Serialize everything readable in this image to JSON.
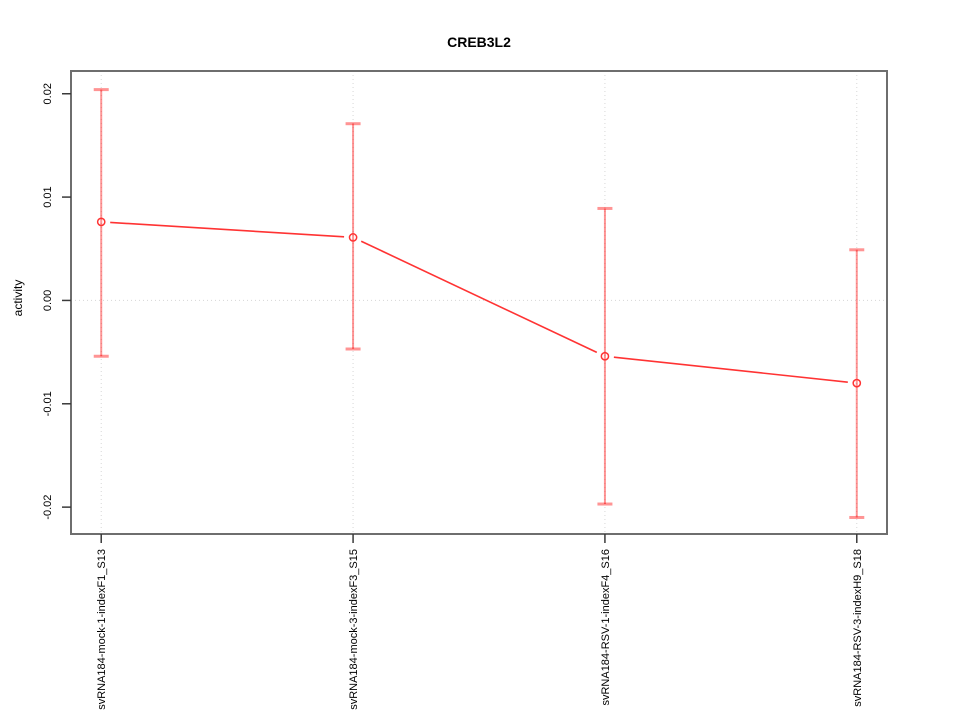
{
  "chart_data": {
    "type": "line",
    "title": "CREB3L2",
    "xlabel": "",
    "ylabel": "activity",
    "categories": [
      "svRNA184-mock-1-indexF1_S13",
      "svRNA184-mock-3-indexF3_S15",
      "svRNA184-RSV-1-indexF4_S16",
      "svRNA184-RSV-3-indexH9_S18"
    ],
    "series": [
      {
        "name": "activity",
        "values": [
          0.0076,
          0.0061,
          -0.0054,
          -0.008
        ],
        "error_upper": [
          0.0204,
          0.0171,
          0.0089,
          0.0049
        ],
        "error_lower": [
          -0.0054,
          -0.0047,
          -0.0197,
          -0.021
        ]
      }
    ],
    "ylim": [
      -0.0226,
      0.0222
    ],
    "yticks": [
      -0.02,
      -0.01,
      0,
      0.01,
      0.02
    ],
    "ytick_labels": [
      "-0.02",
      "-0.01",
      "0.00",
      "0.01",
      "0.02"
    ],
    "grid": {
      "vertical_at_categories": true,
      "horizontal_at_zero": true
    },
    "legend": "none",
    "point_style": "open-circle",
    "colors": {
      "series_line": "#ff3333",
      "point_stroke": "#ff3333",
      "error_bar": "#ff0000",
      "error_bar_opacity": "0.42",
      "grid_line": "#d6d6d6",
      "box_border": "#6e6e6e",
      "tick_mark": "#3a3a3a",
      "text": "#000000",
      "background": "#ffffff"
    }
  }
}
